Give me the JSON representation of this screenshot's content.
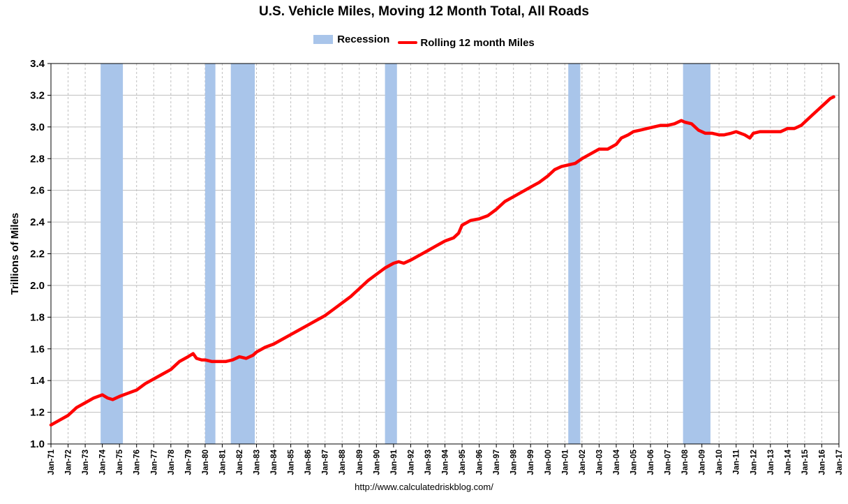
{
  "chart_data": {
    "type": "line",
    "title": "U.S. Vehicle Miles, Moving 12 Month Total, All Roads",
    "xlabel": "",
    "ylabel": "Trillions of Miles",
    "ylim": [
      1.0,
      3.4
    ],
    "yticks": [
      "1.0",
      "1.2",
      "1.4",
      "1.6",
      "1.8",
      "2.0",
      "2.2",
      "2.4",
      "2.6",
      "2.8",
      "3.0",
      "3.2",
      "3.4"
    ],
    "xticks": [
      "Jan-71",
      "Jan-72",
      "Jan-73",
      "Jan-74",
      "Jan-75",
      "Jan-76",
      "Jan-77",
      "Jan-78",
      "Jan-79",
      "Jan-80",
      "Jan-81",
      "Jan-82",
      "Jan-83",
      "Jan-84",
      "Jan-85",
      "Jan-86",
      "Jan-87",
      "Jan-88",
      "Jan-89",
      "Jan-90",
      "Jan-91",
      "Jan-92",
      "Jan-93",
      "Jan-94",
      "Jan-95",
      "Jan-96",
      "Jan-97",
      "Jan-98",
      "Jan-99",
      "Jan-00",
      "Jan-01",
      "Jan-02",
      "Jan-03",
      "Jan-04",
      "Jan-05",
      "Jan-06",
      "Jan-07",
      "Jan-08",
      "Jan-09",
      "Jan-10",
      "Jan-11",
      "Jan-12",
      "Jan-13",
      "Jan-14",
      "Jan-15",
      "Jan-16",
      "Jan-17"
    ],
    "grid": true,
    "legend_position": "top-center",
    "legend": [
      "Recession",
      "Rolling 12 month Miles"
    ],
    "recessions": [
      {
        "start": 1973.9,
        "end": 1975.2
      },
      {
        "start": 1980.0,
        "end": 1980.6
      },
      {
        "start": 1981.5,
        "end": 1982.9
      },
      {
        "start": 1990.5,
        "end": 1991.2
      },
      {
        "start": 2001.2,
        "end": 2001.9
      },
      {
        "start": 2007.9,
        "end": 2009.5
      }
    ],
    "series": [
      {
        "name": "Rolling 12 month Miles",
        "color": "#ff0000",
        "x": [
          1971.0,
          1971.5,
          1972.0,
          1972.5,
          1973.0,
          1973.5,
          1974.0,
          1974.3,
          1974.6,
          1975.0,
          1975.5,
          1976.0,
          1976.5,
          1977.0,
          1977.5,
          1978.0,
          1978.5,
          1979.0,
          1979.3,
          1979.5,
          1979.8,
          1980.0,
          1980.4,
          1980.8,
          1981.2,
          1981.6,
          1982.0,
          1982.4,
          1982.8,
          1983.0,
          1983.5,
          1984.0,
          1984.5,
          1985.0,
          1985.5,
          1986.0,
          1986.5,
          1987.0,
          1987.5,
          1988.0,
          1988.5,
          1989.0,
          1989.5,
          1990.0,
          1990.5,
          1991.0,
          1991.3,
          1991.6,
          1992.0,
          1992.5,
          1993.0,
          1993.5,
          1994.0,
          1994.5,
          1994.8,
          1995.0,
          1995.5,
          1996.0,
          1996.5,
          1997.0,
          1997.5,
          1998.0,
          1998.5,
          1999.0,
          1999.5,
          2000.0,
          2000.4,
          2000.8,
          2001.2,
          2001.6,
          2002.0,
          2002.5,
          2003.0,
          2003.5,
          2004.0,
          2004.3,
          2004.7,
          2005.0,
          2005.4,
          2005.8,
          2006.2,
          2006.6,
          2007.0,
          2007.4,
          2007.8,
          2008.0,
          2008.4,
          2008.8,
          2009.2,
          2009.6,
          2010.0,
          2010.3,
          2010.7,
          2011.0,
          2011.5,
          2011.8,
          2012.0,
          2012.4,
          2012.8,
          2013.2,
          2013.6,
          2014.0,
          2014.4,
          2014.8,
          2015.0,
          2015.4,
          2015.8,
          2016.2,
          2016.5,
          2016.7
        ],
        "values": [
          1.12,
          1.15,
          1.18,
          1.23,
          1.26,
          1.29,
          1.31,
          1.29,
          1.28,
          1.3,
          1.32,
          1.34,
          1.38,
          1.41,
          1.44,
          1.47,
          1.52,
          1.55,
          1.57,
          1.54,
          1.53,
          1.53,
          1.52,
          1.52,
          1.52,
          1.53,
          1.55,
          1.54,
          1.56,
          1.58,
          1.61,
          1.63,
          1.66,
          1.69,
          1.72,
          1.75,
          1.78,
          1.81,
          1.85,
          1.89,
          1.93,
          1.98,
          2.03,
          2.07,
          2.11,
          2.14,
          2.15,
          2.14,
          2.16,
          2.19,
          2.22,
          2.25,
          2.28,
          2.3,
          2.33,
          2.38,
          2.41,
          2.42,
          2.44,
          2.48,
          2.53,
          2.56,
          2.59,
          2.62,
          2.65,
          2.69,
          2.73,
          2.75,
          2.76,
          2.77,
          2.8,
          2.83,
          2.86,
          2.86,
          2.89,
          2.93,
          2.95,
          2.97,
          2.98,
          2.99,
          3.0,
          3.01,
          3.01,
          3.02,
          3.04,
          3.03,
          3.02,
          2.98,
          2.96,
          2.96,
          2.95,
          2.95,
          2.96,
          2.97,
          2.95,
          2.93,
          2.96,
          2.97,
          2.97,
          2.97,
          2.97,
          2.99,
          2.99,
          3.01,
          3.03,
          3.07,
          3.11,
          3.15,
          3.18,
          3.19
        ]
      }
    ],
    "source_text": "http://www.calculatedriskblog.com/"
  },
  "colors": {
    "recession": "#a9c5ea",
    "line": "#ff0000",
    "grid": "#bfbfbf",
    "axis": "#000000"
  }
}
